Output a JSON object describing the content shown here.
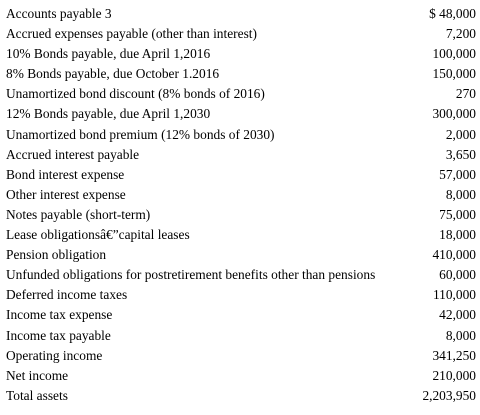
{
  "rows": [
    {
      "label": "Accounts payable 3",
      "value": "$ 48,000"
    },
    {
      "label": "Accrued expenses payable (other than interest)",
      "value": "7,200"
    },
    {
      "label": "10% Bonds payable, due April 1,2016",
      "value": "100,000"
    },
    {
      "label": "8% Bonds payable, due October 1.2016",
      "value": "150,000"
    },
    {
      "label": "Unamortized bond discount (8% bonds of 2016)",
      "value": "270"
    },
    {
      "label": "12% Bonds payable, due April 1,2030",
      "value": "300,000"
    },
    {
      "label": "Unamortized bond premium (12% bonds of 2030)",
      "value": "2,000"
    },
    {
      "label": "Accrued interest payable",
      "value": "3,650"
    },
    {
      "label": "Bond interest expense",
      "value": "57,000"
    },
    {
      "label": "Other interest expense",
      "value": "8,000"
    },
    {
      "label": "Notes payable (short-term)",
      "value": "75,000"
    },
    {
      "label": "Lease obligationsâ€”capital leases",
      "value": "18,000"
    },
    {
      "label": "Pension obligation",
      "value": "410,000"
    },
    {
      "label": "Unfunded obligations for postretirement benefits other than pensions",
      "value": "60,000"
    },
    {
      "label": "Deferred income taxes",
      "value": "110,000"
    },
    {
      "label": "Income tax expense",
      "value": "42,000"
    },
    {
      "label": "Income tax payable",
      "value": "8,000"
    },
    {
      "label": "Operating income",
      "value": "341,250"
    },
    {
      "label": "Net income",
      "value": "210,000"
    },
    {
      "label": "Total assets",
      "value": "2,203,950"
    }
  ]
}
